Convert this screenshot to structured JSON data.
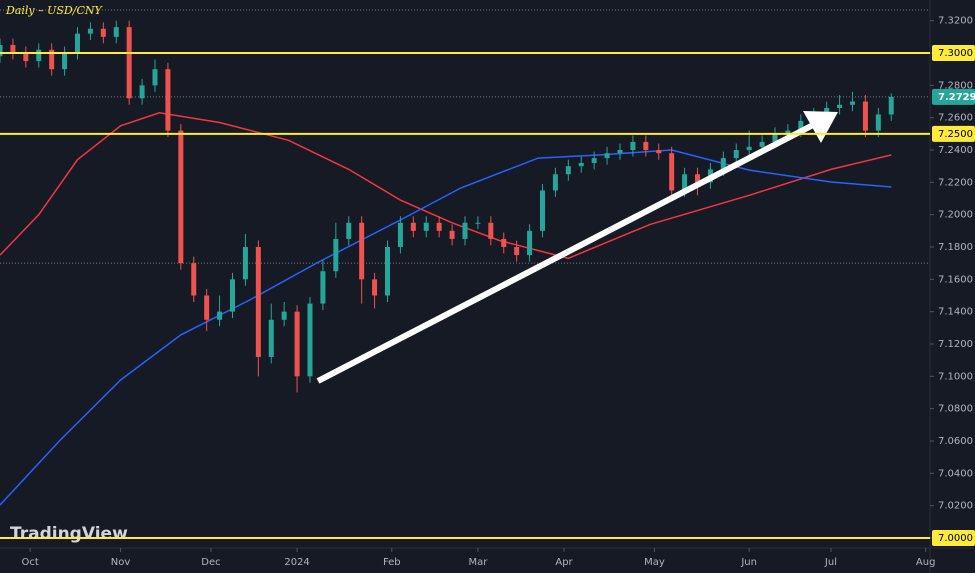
{
  "chart_data": {
    "type": "candlestick",
    "title": "Daily – USD/CNY",
    "watermark": "TradingView",
    "up_color": "#26a69a",
    "down_color": "#ef5350",
    "xlim": [
      0,
      216
    ],
    "xticks": [
      {
        "value": 7,
        "label": "Oct"
      },
      {
        "value": 28,
        "label": "Nov"
      },
      {
        "value": 49,
        "label": "Dec"
      },
      {
        "value": 69,
        "label": "2024"
      },
      {
        "value": 91,
        "label": "Feb"
      },
      {
        "value": 111,
        "label": "Mar"
      },
      {
        "value": 131,
        "label": "Apr"
      },
      {
        "value": 152,
        "label": "May"
      },
      {
        "value": 174,
        "label": "Jun"
      },
      {
        "value": 193,
        "label": "Jul"
      },
      {
        "value": 215,
        "label": "Aug"
      }
    ],
    "ylim": [
      6.9938,
      7.3328
    ],
    "yticks": [
      {
        "value": 7.0,
        "label": "7.0000"
      },
      {
        "value": 7.02,
        "label": "7.0200"
      },
      {
        "value": 7.04,
        "label": "7.0400"
      },
      {
        "value": 7.06,
        "label": "7.0600"
      },
      {
        "value": 7.08,
        "label": "7.0800"
      },
      {
        "value": 7.1,
        "label": "7.1000"
      },
      {
        "value": 7.12,
        "label": "7.1200"
      },
      {
        "value": 7.14,
        "label": "7.1400"
      },
      {
        "value": 7.16,
        "label": "7.1600"
      },
      {
        "value": 7.18,
        "label": "7.1800"
      },
      {
        "value": 7.2,
        "label": "7.2000"
      },
      {
        "value": 7.22,
        "label": "7.2200"
      },
      {
        "value": 7.24,
        "label": "7.2400"
      },
      {
        "value": 7.26,
        "label": "7.2600"
      },
      {
        "value": 7.28,
        "label": "7.2800"
      },
      {
        "value": 7.3,
        "label": "7.3000"
      },
      {
        "value": 7.32,
        "label": "7.3200"
      }
    ],
    "candles": {
      "x": [
        0,
        3,
        6,
        9,
        12,
        15,
        18,
        21,
        24,
        27,
        30,
        33,
        36,
        39,
        42,
        45,
        48,
        51,
        54,
        57,
        60,
        63,
        66,
        69,
        72,
        75,
        78,
        81,
        84,
        87,
        90,
        93,
        96,
        99,
        102,
        105,
        108,
        111,
        114,
        117,
        120,
        123,
        126,
        129,
        132,
        135,
        138,
        141,
        144,
        147,
        150,
        153,
        156,
        159,
        162,
        165,
        168,
        171,
        174,
        177,
        180,
        183,
        186,
        189,
        192,
        195,
        198,
        201,
        204,
        207
      ],
      "open": [
        7.298,
        7.305,
        7.3,
        7.295,
        7.302,
        7.29,
        7.3,
        7.312,
        7.315,
        7.31,
        7.316,
        7.272,
        7.28,
        7.29,
        7.252,
        7.17,
        7.15,
        7.135,
        7.14,
        7.16,
        7.18,
        7.112,
        7.135,
        7.14,
        7.1,
        7.145,
        7.165,
        7.185,
        7.195,
        7.16,
        7.15,
        7.18,
        7.195,
        7.19,
        7.195,
        7.19,
        7.185,
        7.195,
        7.195,
        7.185,
        7.18,
        7.175,
        7.19,
        7.215,
        7.225,
        7.23,
        7.232,
        7.235,
        7.238,
        7.24,
        7.245,
        7.24,
        7.238,
        7.215,
        7.225,
        7.22,
        7.228,
        7.235,
        7.24,
        7.242,
        7.245,
        7.25,
        7.252,
        7.258,
        7.262,
        7.266,
        7.268,
        7.27,
        7.252,
        7.262
      ],
      "high": [
        7.309,
        7.309,
        7.304,
        7.306,
        7.306,
        7.304,
        7.316,
        7.319,
        7.319,
        7.32,
        7.32,
        7.284,
        7.296,
        7.294,
        7.256,
        7.174,
        7.154,
        7.15,
        7.164,
        7.188,
        7.184,
        7.145,
        7.146,
        7.144,
        7.149,
        7.172,
        7.195,
        7.199,
        7.199,
        7.164,
        7.184,
        7.199,
        7.199,
        7.199,
        7.199,
        7.194,
        7.199,
        7.199,
        7.199,
        7.189,
        7.184,
        7.194,
        7.219,
        7.229,
        7.234,
        7.236,
        7.239,
        7.242,
        7.244,
        7.249,
        7.249,
        7.244,
        7.242,
        7.229,
        7.229,
        7.232,
        7.239,
        7.244,
        7.252,
        7.249,
        7.254,
        7.256,
        7.262,
        7.266,
        7.27,
        7.274,
        7.276,
        7.274,
        7.266,
        7.275
      ],
      "low": [
        7.294,
        7.296,
        7.291,
        7.291,
        7.286,
        7.286,
        7.296,
        7.308,
        7.306,
        7.306,
        7.268,
        7.268,
        7.276,
        7.248,
        7.166,
        7.146,
        7.128,
        7.131,
        7.136,
        7.156,
        7.1,
        7.108,
        7.131,
        7.09,
        7.096,
        7.141,
        7.161,
        7.181,
        7.145,
        7.142,
        7.146,
        7.176,
        7.186,
        7.186,
        7.186,
        7.181,
        7.181,
        7.191,
        7.181,
        7.176,
        7.171,
        7.171,
        7.186,
        7.211,
        7.221,
        7.226,
        7.228,
        7.231,
        7.234,
        7.236,
        7.236,
        7.234,
        7.211,
        7.211,
        7.212,
        7.216,
        7.224,
        7.231,
        7.236,
        7.238,
        7.241,
        7.246,
        7.248,
        7.254,
        7.258,
        7.262,
        7.264,
        7.248,
        7.248,
        7.258
      ],
      "close": [
        7.305,
        7.3,
        7.295,
        7.302,
        7.29,
        7.3,
        7.312,
        7.315,
        7.31,
        7.316,
        7.272,
        7.28,
        7.29,
        7.252,
        7.17,
        7.15,
        7.135,
        7.14,
        7.16,
        7.18,
        7.112,
        7.135,
        7.14,
        7.1,
        7.145,
        7.165,
        7.185,
        7.195,
        7.16,
        7.15,
        7.18,
        7.195,
        7.19,
        7.195,
        7.19,
        7.185,
        7.195,
        7.195,
        7.185,
        7.18,
        7.175,
        7.19,
        7.215,
        7.225,
        7.23,
        7.232,
        7.235,
        7.238,
        7.24,
        7.245,
        7.24,
        7.238,
        7.215,
        7.225,
        7.22,
        7.228,
        7.235,
        7.24,
        7.242,
        7.245,
        7.25,
        7.252,
        7.258,
        7.262,
        7.266,
        7.268,
        7.27,
        7.252,
        7.262,
        7.2729
      ]
    },
    "series": [
      {
        "color": "#f23645",
        "x": [
          0,
          9,
          18,
          28,
          37,
          51,
          67,
          81,
          93,
          105,
          116,
          132,
          151,
          174,
          193,
          207
        ],
        "values": [
          7.175,
          7.2,
          7.234,
          7.255,
          7.263,
          7.257,
          7.246,
          7.228,
          7.209,
          7.195,
          7.184,
          7.173,
          7.194,
          7.212,
          7.228,
          7.237
        ]
      },
      {
        "color": "#2962ff",
        "x": [
          0,
          14,
          28,
          42,
          58,
          74,
          93,
          107,
          125,
          139,
          156,
          174,
          193,
          207
        ],
        "values": [
          7.0204,
          7.0606,
          7.0977,
          7.1256,
          7.1472,
          7.1707,
          7.1967,
          7.2165,
          7.235,
          7.2369,
          7.24,
          7.2276,
          7.2202,
          7.2171
        ]
      }
    ],
    "levels": [
      {
        "value": 7.3,
        "label": "7.3000"
      },
      {
        "value": 7.25,
        "label": "7.2500"
      },
      {
        "value": 7.0,
        "label": "7.0000"
      }
    ],
    "level_color": "#ffeb3b",
    "last_price": {
      "value": 7.2729,
      "label": "7.2729"
    },
    "dotted_lines": [
      7.3266,
      7.17
    ]
  }
}
